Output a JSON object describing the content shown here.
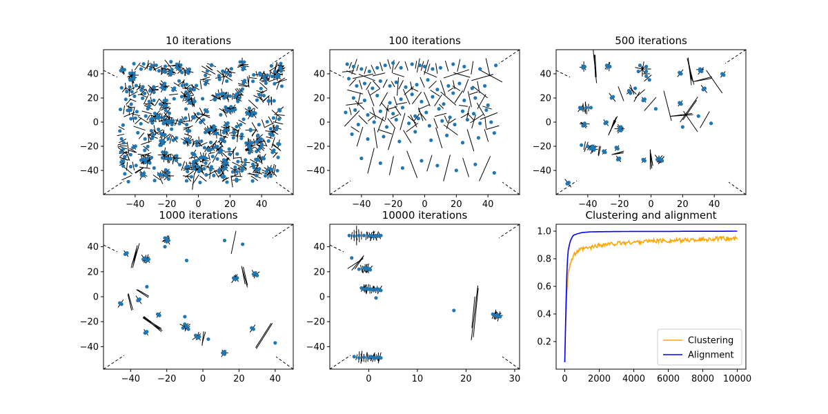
{
  "chart_data": [
    {
      "type": "scatter",
      "title": "10 iterations",
      "xlim": [
        -60,
        60
      ],
      "ylim": [
        -60,
        60
      ],
      "xticks": [
        -40,
        -20,
        0,
        20,
        40
      ],
      "yticks": [
        -40,
        -20,
        0,
        20,
        40
      ],
      "xtick_labels": [
        "−40",
        "−20",
        "0",
        "20",
        "40"
      ],
      "ytick_labels": [
        "−40",
        "−20",
        "0",
        "20",
        "40"
      ],
      "description_of_points": "approximately 400 uniformly scattered points across the full domain",
      "point_color": "#1f77b4"
    },
    {
      "type": "scatter",
      "title": "100 iterations",
      "xlim": [
        -60,
        60
      ],
      "ylim": [
        -60,
        60
      ],
      "xticks": [
        -40,
        -20,
        0,
        20,
        40
      ],
      "yticks": [
        -40,
        -20,
        0,
        20,
        40
      ],
      "xtick_labels": [
        "−40",
        "−20",
        "0",
        "20",
        "40"
      ],
      "ytick_labels": [
        "−40",
        "−20",
        "0",
        "20",
        "40"
      ],
      "x": [
        -49,
        -45,
        -40,
        -35,
        -30,
        -25,
        -20,
        -15,
        -8,
        -3,
        0,
        5,
        10,
        18,
        25,
        35,
        45,
        -48,
        -43,
        -38,
        -33,
        -28,
        -22,
        -18,
        -12,
        -5,
        2,
        8,
        15,
        22,
        30,
        38,
        -45,
        -38,
        -30,
        -22,
        -15,
        -8,
        -2,
        5,
        12,
        18,
        25,
        32,
        40,
        -50,
        -44,
        -36,
        -28,
        -20,
        -14,
        -6,
        1,
        9,
        16,
        24,
        31,
        39,
        -42,
        -32,
        -24,
        -18,
        -10,
        -4,
        3,
        11,
        19,
        27,
        35,
        42,
        -46,
        -36,
        -26,
        -16,
        -6,
        4,
        14,
        24,
        34,
        44,
        -40,
        -28,
        -14,
        -2,
        8,
        20,
        32,
        44
      ],
      "y": [
        48,
        46,
        44,
        42,
        45,
        47,
        49,
        45,
        48,
        47,
        46,
        44,
        45,
        48,
        46,
        44,
        47,
        36,
        30,
        32,
        28,
        34,
        30,
        33,
        29,
        31,
        35,
        27,
        30,
        32,
        28,
        30,
        20,
        18,
        22,
        16,
        19,
        23,
        17,
        21,
        15,
        24,
        18,
        20,
        14,
        8,
        10,
        6,
        9,
        7,
        12,
        5,
        8,
        11,
        4,
        9,
        7,
        10,
        -2,
        0,
        -4,
        2,
        -1,
        3,
        -3,
        1,
        -2,
        2,
        -1,
        0,
        -10,
        -14,
        -12,
        -16,
        -8,
        -15,
        -11,
        -17,
        -13,
        -9,
        -30,
        -34,
        -38,
        -32,
        -36,
        -40,
        -35,
        -42
      ],
      "point_color": "#1f77b4"
    },
    {
      "type": "scatter",
      "title": "500 iterations",
      "xlim": [
        -60,
        60
      ],
      "ylim": [
        -60,
        60
      ],
      "xticks": [
        -40,
        -20,
        0,
        20,
        40
      ],
      "yticks": [
        -40,
        -20,
        0,
        20,
        40
      ],
      "xtick_labels": [
        "−40",
        "−20",
        "0",
        "20",
        "40"
      ],
      "ytick_labels": [
        "−40",
        "−20",
        "0",
        "20",
        "40"
      ],
      "x": [
        -43,
        -43,
        -42,
        -28,
        -27,
        -26,
        -8,
        -7,
        -3,
        -3,
        -3,
        -14,
        -13,
        -10,
        -1,
        18,
        19,
        31,
        31,
        32,
        45,
        46,
        -45,
        -44,
        -41,
        -38,
        -25,
        -24,
        -5,
        -4,
        3,
        18,
        19,
        34,
        33,
        -43,
        -42,
        -42,
        -37,
        -36,
        -30,
        -29,
        -22,
        -21,
        -20,
        -21,
        -20,
        -5,
        -4,
        4,
        5,
        6,
        -44,
        -40,
        -38,
        -36,
        -29,
        -28,
        -20,
        -19,
        -20,
        -19,
        -52,
        -53,
        6,
        7,
        20,
        30,
        38
      ],
      "y": [
        46,
        45,
        46,
        47,
        46,
        46,
        42,
        47,
        46,
        42,
        38,
        26,
        24,
        28,
        35,
        41,
        40,
        44,
        43,
        42,
        40,
        39,
        12,
        11,
        12,
        12,
        20,
        21,
        18,
        19,
        11,
        16,
        15,
        28,
        27,
        -3,
        -2,
        -1,
        -20,
        -22,
        -24,
        -25,
        -21,
        -22,
        -30,
        -31,
        -30,
        -31,
        -32,
        -31,
        -30,
        -31,
        -19,
        -20,
        -22,
        -23,
        -1,
        0,
        -6,
        -7,
        -5,
        -4,
        -50,
        -51,
        -31,
        -32,
        -4,
        5,
        -1
      ],
      "point_color": "#1f77b4"
    },
    {
      "type": "scatter",
      "title": "1000 iterations",
      "xlim": [
        -55,
        50
      ],
      "ylim": [
        -58,
        58
      ],
      "xticks": [
        -40,
        -20,
        0,
        20,
        40
      ],
      "yticks": [
        -40,
        -20,
        0,
        20,
        40
      ],
      "xtick_labels": [
        "−40",
        "−20",
        "0",
        "20",
        "40"
      ],
      "ytick_labels": [
        "−40",
        "−20",
        "0",
        "20",
        "40"
      ],
      "x": [
        -43,
        -42,
        -20,
        -21,
        -19,
        -20,
        -21,
        -33,
        -32,
        -31,
        -30,
        -9,
        -31,
        -36,
        -35,
        -46,
        -45,
        -32,
        -31,
        -25,
        -24,
        -10,
        -9,
        -11,
        -8,
        -10,
        -3,
        -2,
        -4,
        3,
        11,
        12,
        12,
        19,
        18,
        17,
        29,
        28,
        30,
        27,
        28,
        40,
        22,
        12
      ],
      "y": [
        34,
        35,
        46,
        47,
        45,
        44,
        40,
        30,
        31,
        29,
        30,
        29,
        8,
        -3,
        -2,
        -5,
        -6,
        -29,
        -28,
        -14,
        -15,
        -22,
        -24,
        -25,
        -26,
        -16,
        -33,
        -32,
        -31,
        -34,
        -45,
        -44,
        -46,
        15,
        14,
        15,
        19,
        18,
        17,
        -25,
        -26,
        -37,
        42,
        45
      ],
      "point_color": "#1f77b4"
    },
    {
      "type": "scatter",
      "title": "10000 iterations",
      "xlim": [
        -8,
        31
      ],
      "ylim": [
        -58,
        58
      ],
      "xticks": [
        0,
        10,
        20,
        30
      ],
      "yticks": [
        -40,
        -20,
        0,
        20,
        40
      ],
      "xtick_labels": [
        "0",
        "10",
        "20",
        "30"
      ],
      "ytick_labels": [
        "−40",
        "−20",
        "0",
        "20",
        "40"
      ],
      "x": [
        -4,
        -3,
        -2,
        -1,
        0,
        0.5,
        1,
        1.5,
        2,
        2.5,
        -3.5,
        -0.5,
        -2,
        -1,
        -0.5,
        0,
        0.3,
        -1.5,
        -1,
        -0.5,
        0,
        0.5,
        1,
        1.5,
        2,
        2.5,
        1.5,
        -3,
        -2,
        -1,
        0,
        0.5,
        1,
        1.5,
        2,
        2.5,
        17.5,
        25.5,
        26,
        26.5,
        27,
        26.5
      ],
      "y": [
        49,
        48.5,
        49,
        49,
        48.5,
        49,
        48,
        49,
        48.5,
        49,
        31,
        23,
        22,
        23,
        22,
        22.5,
        21.5,
        7,
        6,
        6.5,
        6,
        6,
        5.5,
        6,
        6,
        5,
        -1,
        -48,
        -49,
        -48.5,
        -49,
        -48,
        -49,
        -49,
        -48.5,
        -49,
        -11,
        -14,
        -15,
        -14.5,
        -16,
        -15.5
      ],
      "point_color": "#1f77b4"
    },
    {
      "type": "line",
      "title": "Clustering and alignment",
      "xlim": [
        -500,
        10500
      ],
      "ylim": [
        0,
        1.05
      ],
      "xticks": [
        0,
        2000,
        4000,
        6000,
        8000,
        10000
      ],
      "yticks": [
        0.2,
        0.4,
        0.6,
        0.8,
        1.0
      ],
      "xtick_labels": [
        "0",
        "2000",
        "4000",
        "6000",
        "8000",
        "10000"
      ],
      "ytick_labels": [
        "0.2",
        "0.4",
        "0.6",
        "0.8",
        "1.0"
      ],
      "x": [
        0,
        50,
        100,
        150,
        200,
        300,
        400,
        500,
        700,
        1000,
        1500,
        2000,
        3000,
        4000,
        5000,
        6000,
        7000,
        8000,
        9000,
        10000
      ],
      "series": [
        {
          "name": "Clustering",
          "color": "#ffa500",
          "values": [
            0.05,
            0.3,
            0.5,
            0.62,
            0.7,
            0.76,
            0.79,
            0.82,
            0.85,
            0.87,
            0.88,
            0.9,
            0.91,
            0.92,
            0.93,
            0.93,
            0.935,
            0.94,
            0.945,
            0.945
          ]
        },
        {
          "name": "Alignment",
          "color": "#0000ff",
          "values": [
            0.05,
            0.35,
            0.62,
            0.78,
            0.86,
            0.92,
            0.95,
            0.97,
            0.98,
            0.99,
            0.995,
            0.996,
            0.997,
            0.998,
            0.998,
            0.998,
            0.999,
            0.999,
            0.999,
            1.0
          ]
        }
      ],
      "legend_position": "bottom-right"
    }
  ]
}
